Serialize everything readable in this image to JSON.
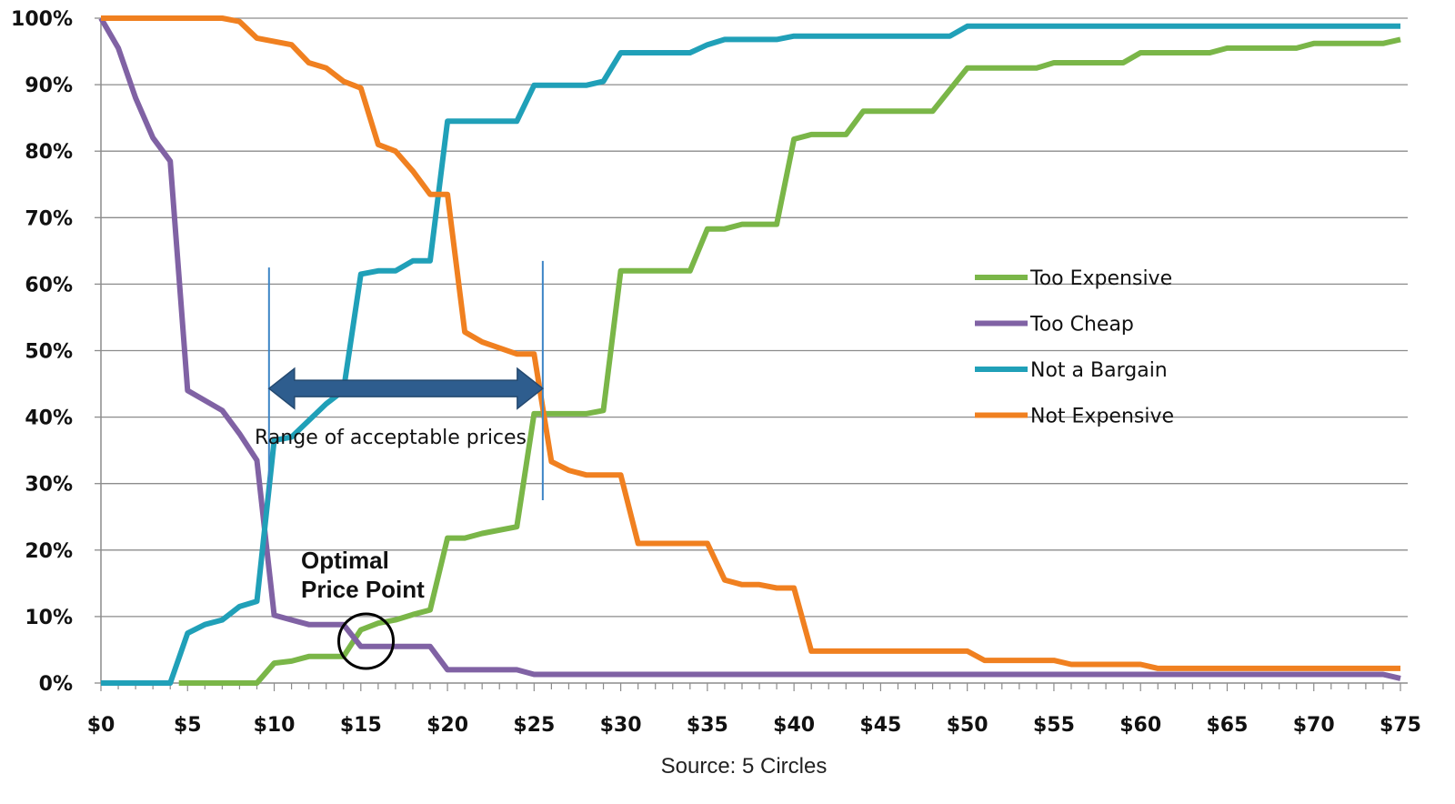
{
  "chart_data": {
    "type": "line",
    "title": "",
    "xlabel": "",
    "ylabel": "",
    "xlim": [
      0,
      75
    ],
    "ylim": [
      0,
      100
    ],
    "grid": true,
    "legend_position": "right-center",
    "x_ticks": [
      "$0",
      "$5",
      "$10",
      "$15",
      "$20",
      "$25",
      "$30",
      "$35",
      "$40",
      "$45",
      "$50",
      "$55",
      "$60",
      "$65",
      "$70",
      "$75"
    ],
    "y_ticks": [
      "0%",
      "10%",
      "20%",
      "30%",
      "40%",
      "50%",
      "60%",
      "70%",
      "80%",
      "90%",
      "100%"
    ],
    "series": [
      {
        "name": "Too Expensive",
        "color": "#7ab648",
        "points": [
          [
            4.5,
            0
          ],
          [
            9,
            0
          ],
          [
            10,
            3
          ],
          [
            11,
            3.3
          ],
          [
            12,
            4
          ],
          [
            14,
            4
          ],
          [
            15,
            8
          ],
          [
            16,
            9
          ],
          [
            17,
            9.5
          ],
          [
            18,
            10.3
          ],
          [
            19,
            11
          ],
          [
            20,
            21.8
          ],
          [
            21,
            21.8
          ],
          [
            22,
            22.5
          ],
          [
            24,
            23.5
          ],
          [
            25,
            40.5
          ],
          [
            28,
            40.5
          ],
          [
            29,
            41
          ],
          [
            30,
            62
          ],
          [
            34,
            62
          ],
          [
            35,
            68.3
          ],
          [
            36,
            68.3
          ],
          [
            37,
            69
          ],
          [
            39,
            69
          ],
          [
            40,
            81.8
          ],
          [
            41,
            82.5
          ],
          [
            43,
            82.5
          ],
          [
            44,
            86
          ],
          [
            48,
            86
          ],
          [
            50,
            92.5
          ],
          [
            54,
            92.5
          ],
          [
            55,
            93.3
          ],
          [
            59,
            93.3
          ],
          [
            60,
            94.8
          ],
          [
            64,
            94.8
          ],
          [
            65,
            95.5
          ],
          [
            69,
            95.5
          ],
          [
            70,
            96.2
          ],
          [
            74,
            96.2
          ],
          [
            75,
            96.8
          ]
        ]
      },
      {
        "name": "Too Cheap",
        "color": "#8062a4",
        "points": [
          [
            0,
            100
          ],
          [
            1,
            95.5
          ],
          [
            2,
            88
          ],
          [
            3,
            82
          ],
          [
            4,
            78.5
          ],
          [
            5,
            44
          ],
          [
            6,
            42.5
          ],
          [
            7,
            41
          ],
          [
            8,
            37.5
          ],
          [
            9,
            33.5
          ],
          [
            10,
            10.2
          ],
          [
            11,
            9.5
          ],
          [
            12,
            8.8
          ],
          [
            14,
            8.8
          ],
          [
            15,
            5.5
          ],
          [
            19,
            5.5
          ],
          [
            20,
            2
          ],
          [
            24,
            2
          ],
          [
            25,
            1.3
          ],
          [
            74,
            1.3
          ],
          [
            75,
            0.7
          ]
        ]
      },
      {
        "name": "Not a Bargain",
        "color": "#20a0b8",
        "points": [
          [
            0,
            0
          ],
          [
            4,
            0
          ],
          [
            5,
            7.5
          ],
          [
            6,
            8.8
          ],
          [
            7,
            9.5
          ],
          [
            8,
            11.5
          ],
          [
            9,
            12.3
          ],
          [
            10,
            36.5
          ],
          [
            11,
            37
          ],
          [
            13,
            42
          ],
          [
            14,
            44
          ],
          [
            15,
            61.5
          ],
          [
            16,
            62
          ],
          [
            17,
            62
          ],
          [
            18,
            63.5
          ],
          [
            19,
            63.5
          ],
          [
            20,
            84.5
          ],
          [
            24,
            84.5
          ],
          [
            25,
            89.9
          ],
          [
            28,
            89.9
          ],
          [
            29,
            90.5
          ],
          [
            30,
            94.8
          ],
          [
            34,
            94.8
          ],
          [
            35,
            96
          ],
          [
            36,
            96.8
          ],
          [
            39,
            96.8
          ],
          [
            40,
            97.3
          ],
          [
            49,
            97.3
          ],
          [
            50,
            98.8
          ],
          [
            75,
            98.8
          ]
        ]
      },
      {
        "name": "Not Expensive",
        "color": "#f08020",
        "points": [
          [
            0,
            100
          ],
          [
            7,
            100
          ],
          [
            8,
            99.5
          ],
          [
            9,
            97
          ],
          [
            10,
            96.5
          ],
          [
            11,
            96
          ],
          [
            12,
            93.3
          ],
          [
            13,
            92.5
          ],
          [
            14,
            90.5
          ],
          [
            15,
            89.5
          ],
          [
            16,
            81
          ],
          [
            17,
            80
          ],
          [
            18,
            77
          ],
          [
            19,
            73.5
          ],
          [
            20,
            73.5
          ],
          [
            21,
            52.8
          ],
          [
            22,
            51.3
          ],
          [
            24,
            49.5
          ],
          [
            25,
            49.5
          ],
          [
            26,
            33.3
          ],
          [
            27,
            32
          ],
          [
            28,
            31.3
          ],
          [
            30,
            31.3
          ],
          [
            31,
            21
          ],
          [
            35,
            21
          ],
          [
            36,
            15.5
          ],
          [
            37,
            14.8
          ],
          [
            38,
            14.8
          ],
          [
            39,
            14.3
          ],
          [
            40,
            14.3
          ],
          [
            41,
            4.8
          ],
          [
            50,
            4.8
          ],
          [
            51,
            3.4
          ],
          [
            55,
            3.4
          ],
          [
            56,
            2.8
          ],
          [
            60,
            2.8
          ],
          [
            61,
            2.2
          ],
          [
            75,
            2.2
          ]
        ]
      }
    ],
    "reference_lines": [
      {
        "name": "lower-bound-line",
        "x": 9.7,
        "y_range": [
          27.5,
          62.5
        ]
      },
      {
        "name": "upper-bound-line",
        "x": 25.5,
        "y_range": [
          27.5,
          63.5
        ]
      }
    ],
    "range_arrow": {
      "x_from": 9.7,
      "x_to": 25.5,
      "y": 44.3,
      "color": "#2e5d8e"
    },
    "optimal_point_marker": {
      "x": 15.3,
      "y": 6.3
    },
    "annotations": {
      "range_label": "Range of acceptable prices",
      "optimal_line1": "Optimal",
      "optimal_line2": "Price Point"
    },
    "source": "Source: 5 Circles"
  }
}
